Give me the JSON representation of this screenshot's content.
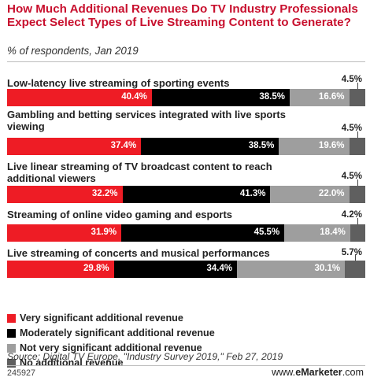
{
  "title": "How Much Additional Revenues Do TV Industry Professionals Expect Select Types of Live Streaming Content to Generate?",
  "subtitle": "% of respondents, Jan 2019",
  "source": "Source: Digital TV Europe, \"Industry Survey 2019,\" Feb 27, 2019",
  "chart_id": "245927",
  "brand": {
    "prefix": "www.",
    "name": "eMarketer",
    "suffix": ".com"
  },
  "colors": {
    "title": "#c8102e",
    "very": "#ee1c25",
    "moderately": "#000000",
    "not_very": "#9e9e9e",
    "none": "#5f5f5f"
  },
  "chart_data": {
    "type": "bar",
    "orientation": "horizontal",
    "stacked": true,
    "title": "How Much Additional Revenues Do TV Industry Professionals Expect Select Types of Live Streaming Content to Generate?",
    "subtitle": "% of respondents, Jan 2019",
    "categories": [
      "Low-latency live streaming of sporting events",
      "Gambling and betting services integrated with live sports viewing",
      "Live linear streaming of TV broadcast content to reach additional viewers",
      "Streaming of online video gaming and esports",
      "Live streaming of concerts and musical performances"
    ],
    "series": [
      {
        "name": "Very significant additional revenue",
        "color": "#ee1c25",
        "values": [
          40.4,
          37.4,
          32.2,
          31.9,
          29.8
        ],
        "labels": [
          "40.4%",
          "37.4%",
          "32.2%",
          "31.9%",
          "29.8%"
        ]
      },
      {
        "name": "Moderately significant additional revenue",
        "color": "#000000",
        "values": [
          38.5,
          38.5,
          41.3,
          45.5,
          34.4
        ],
        "labels": [
          "38.5%",
          "38.5%",
          "41.3%",
          "45.5%",
          "34.4%"
        ]
      },
      {
        "name": "Not very significant additional revenue",
        "color": "#9e9e9e",
        "values": [
          16.6,
          19.6,
          22.0,
          18.4,
          30.1
        ],
        "labels": [
          "16.6%",
          "19.6%",
          "22.0%",
          "18.4%",
          "30.1%"
        ]
      },
      {
        "name": "No additional revenue",
        "color": "#5f5f5f",
        "values": [
          4.5,
          4.5,
          4.5,
          4.2,
          5.7
        ],
        "labels": [
          "4.5%",
          "4.5%",
          "4.5%",
          "4.2%",
          "5.7%"
        ]
      }
    ],
    "legend": "bottom-left",
    "grid": false
  }
}
